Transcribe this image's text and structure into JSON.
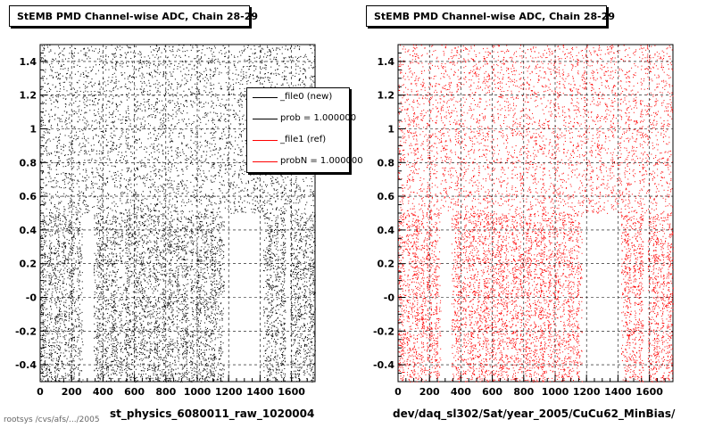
{
  "chart_data": [
    {
      "type": "scatter",
      "title": "StEMB PMD Channel-wise ADC, Chain 28-29",
      "xlabel": "st_physics_6080011_raw_1020004",
      "ylabel": "",
      "xlim": [
        0,
        1750
      ],
      "ylim": [
        -0.5,
        1.5
      ],
      "x_ticks": [
        "0",
        "200",
        "400",
        "600",
        "800",
        "1000",
        "1200",
        "1400",
        "1600"
      ],
      "y_ticks": [
        "-0.4",
        "-0.2",
        "-0",
        "0.2",
        "0.4",
        "0.6",
        "0.8",
        "1",
        "1.2",
        "1.4"
      ],
      "color": "#000000",
      "grid": true,
      "series": [
        {
          "name": "_file0 (new)",
          "color": "#000000"
        }
      ],
      "dense_regions": [
        {
          "x": [
            0,
            270
          ],
          "y": [
            -0.5,
            0.5
          ]
        },
        {
          "x": [
            340,
            1170
          ],
          "y": [
            -0.5,
            0.5
          ]
        },
        {
          "x": [
            1420,
            1560
          ],
          "y": [
            -0.5,
            0.5
          ]
        },
        {
          "x": [
            1590,
            1750
          ],
          "y": [
            -0.5,
            0.5
          ]
        },
        {
          "x": [
            0,
            1750
          ],
          "y": [
            0.5,
            1.5
          ]
        }
      ]
    },
    {
      "type": "scatter",
      "title": "StEMB PMD Channel-wise ADC, Chain 28-29",
      "xlabel": "dev/daq_sl302/Sat/year_2005/CuCu62_MinBias/",
      "ylabel": "",
      "xlim": [
        0,
        1750
      ],
      "ylim": [
        -0.5,
        1.5
      ],
      "x_ticks": [
        "0",
        "200",
        "400",
        "600",
        "800",
        "1000",
        "1200",
        "1400",
        "1600"
      ],
      "y_ticks": [
        "-0.4",
        "-0.2",
        "-0",
        "0.2",
        "0.4",
        "0.6",
        "0.8",
        "1",
        "1.2",
        "1.4"
      ],
      "color": "#ff0000",
      "grid": true,
      "series": [
        {
          "name": "_file1 (ref)",
          "color": "#ff0000"
        }
      ],
      "dense_regions": [
        {
          "x": [
            0,
            270
          ],
          "y": [
            -0.5,
            0.5
          ]
        },
        {
          "x": [
            340,
            1170
          ],
          "y": [
            -0.5,
            0.5
          ]
        },
        {
          "x": [
            1420,
            1560
          ],
          "y": [
            -0.5,
            0.5
          ]
        },
        {
          "x": [
            1590,
            1750
          ],
          "y": [
            -0.5,
            0.5
          ]
        },
        {
          "x": [
            0,
            1750
          ],
          "y": [
            0.5,
            1.5
          ]
        }
      ]
    }
  ],
  "legend": {
    "items": [
      {
        "label": "_file0 (new)",
        "color": "#000000"
      },
      {
        "label": "prob = 1.000000",
        "color": "#000000"
      },
      {
        "label": "_file1 (ref)",
        "color": "#ff0000"
      },
      {
        "label": "probN = 1.000000",
        "color": "#ff0000"
      }
    ]
  },
  "footer_text": "rootsys /cvs/afs/.../2005"
}
